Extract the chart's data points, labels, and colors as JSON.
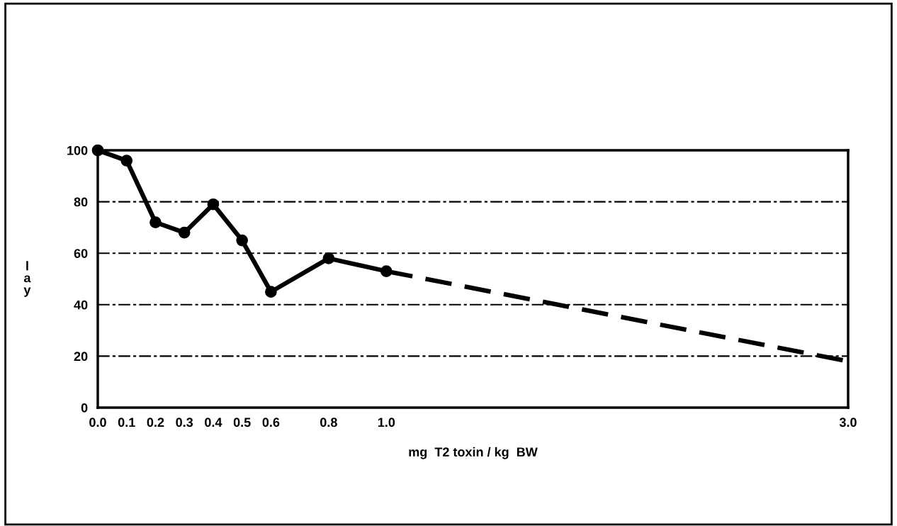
{
  "chart_data": {
    "type": "line",
    "xlabel": "mg  T2 toxin / kg  BW",
    "ylabel": "lay",
    "categories": [
      "0.0",
      "0.1",
      "0.2",
      "0.3",
      "0.4",
      "0.5",
      "0.6",
      null,
      "0.8",
      null,
      "1.0",
      null,
      null,
      null,
      null,
      null,
      null,
      null,
      null,
      null,
      null,
      null,
      null,
      null,
      null,
      null,
      "3.0"
    ],
    "series": [
      {
        "color": "#000000",
        "marker": "circle",
        "line_style": "solid",
        "values": [
          100,
          96,
          72,
          68,
          79,
          65,
          45,
          null,
          58,
          null,
          53,
          null,
          null,
          null,
          null,
          null,
          null,
          null,
          null,
          null,
          null,
          null,
          null,
          null,
          null,
          null,
          null
        ]
      },
      {
        "color": "#000000",
        "marker": "none",
        "line_style": "dashed",
        "values": [
          null,
          null,
          null,
          null,
          null,
          null,
          null,
          null,
          null,
          null,
          53,
          null,
          null,
          null,
          null,
          null,
          null,
          null,
          null,
          null,
          null,
          null,
          null,
          null,
          null,
          null,
          18
        ]
      }
    ],
    "ylim": [
      0,
      100
    ],
    "yticks": [
      0,
      20,
      40,
      60,
      80,
      100
    ],
    "grid": "y"
  }
}
